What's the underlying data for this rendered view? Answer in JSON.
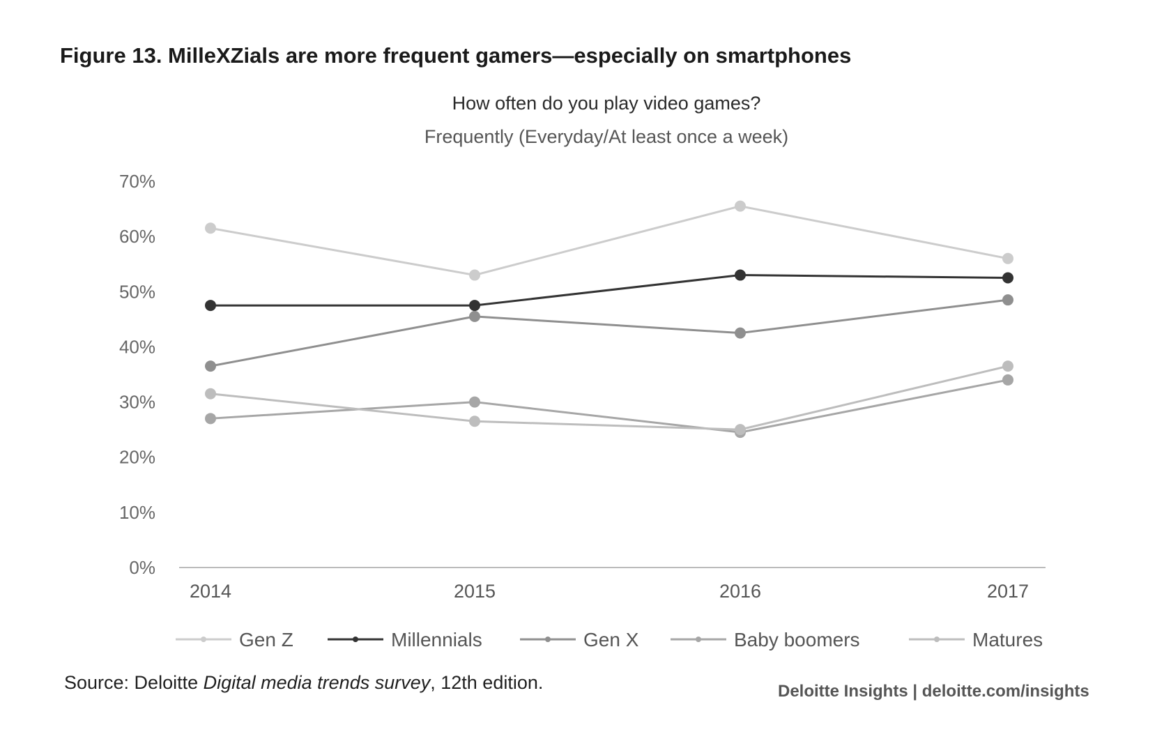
{
  "figure_title": "Figure 13. MilleXZials are more frequent gamers—especially on smartphones",
  "source": {
    "prefix": "Source: Deloitte ",
    "italic": "Digital media trends survey",
    "suffix": ", 12th edition."
  },
  "brand": "Deloitte Insights | deloitte.com/insights",
  "chart_data": {
    "type": "line",
    "title": "How often do you play video games?",
    "subtitle": "Frequently (Everyday/At least once a week)",
    "xlabel": "",
    "ylabel": "",
    "x": [
      "2014",
      "2015",
      "2016",
      "2017"
    ],
    "ylim": [
      0,
      70
    ],
    "y_ticks": [
      "0%",
      "10%",
      "20%",
      "30%",
      "40%",
      "50%",
      "60%",
      "70%"
    ],
    "grid": false,
    "legend_position": "bottom",
    "series": [
      {
        "name": "Gen Z",
        "values": [
          61.5,
          53,
          65.5,
          56
        ],
        "color": "#cccccc"
      },
      {
        "name": "Millennials",
        "values": [
          47.5,
          47.5,
          53,
          52.5
        ],
        "color": "#333333"
      },
      {
        "name": "Gen X",
        "values": [
          36.5,
          45.5,
          42.5,
          48.5
        ],
        "color": "#8f8f8f"
      },
      {
        "name": "Baby boomers",
        "values": [
          27,
          30,
          24.5,
          34
        ],
        "color": "#a6a6a6"
      },
      {
        "name": "Matures",
        "values": [
          31.5,
          26.5,
          25,
          36.5
        ],
        "color": "#bdbdbd"
      }
    ]
  }
}
